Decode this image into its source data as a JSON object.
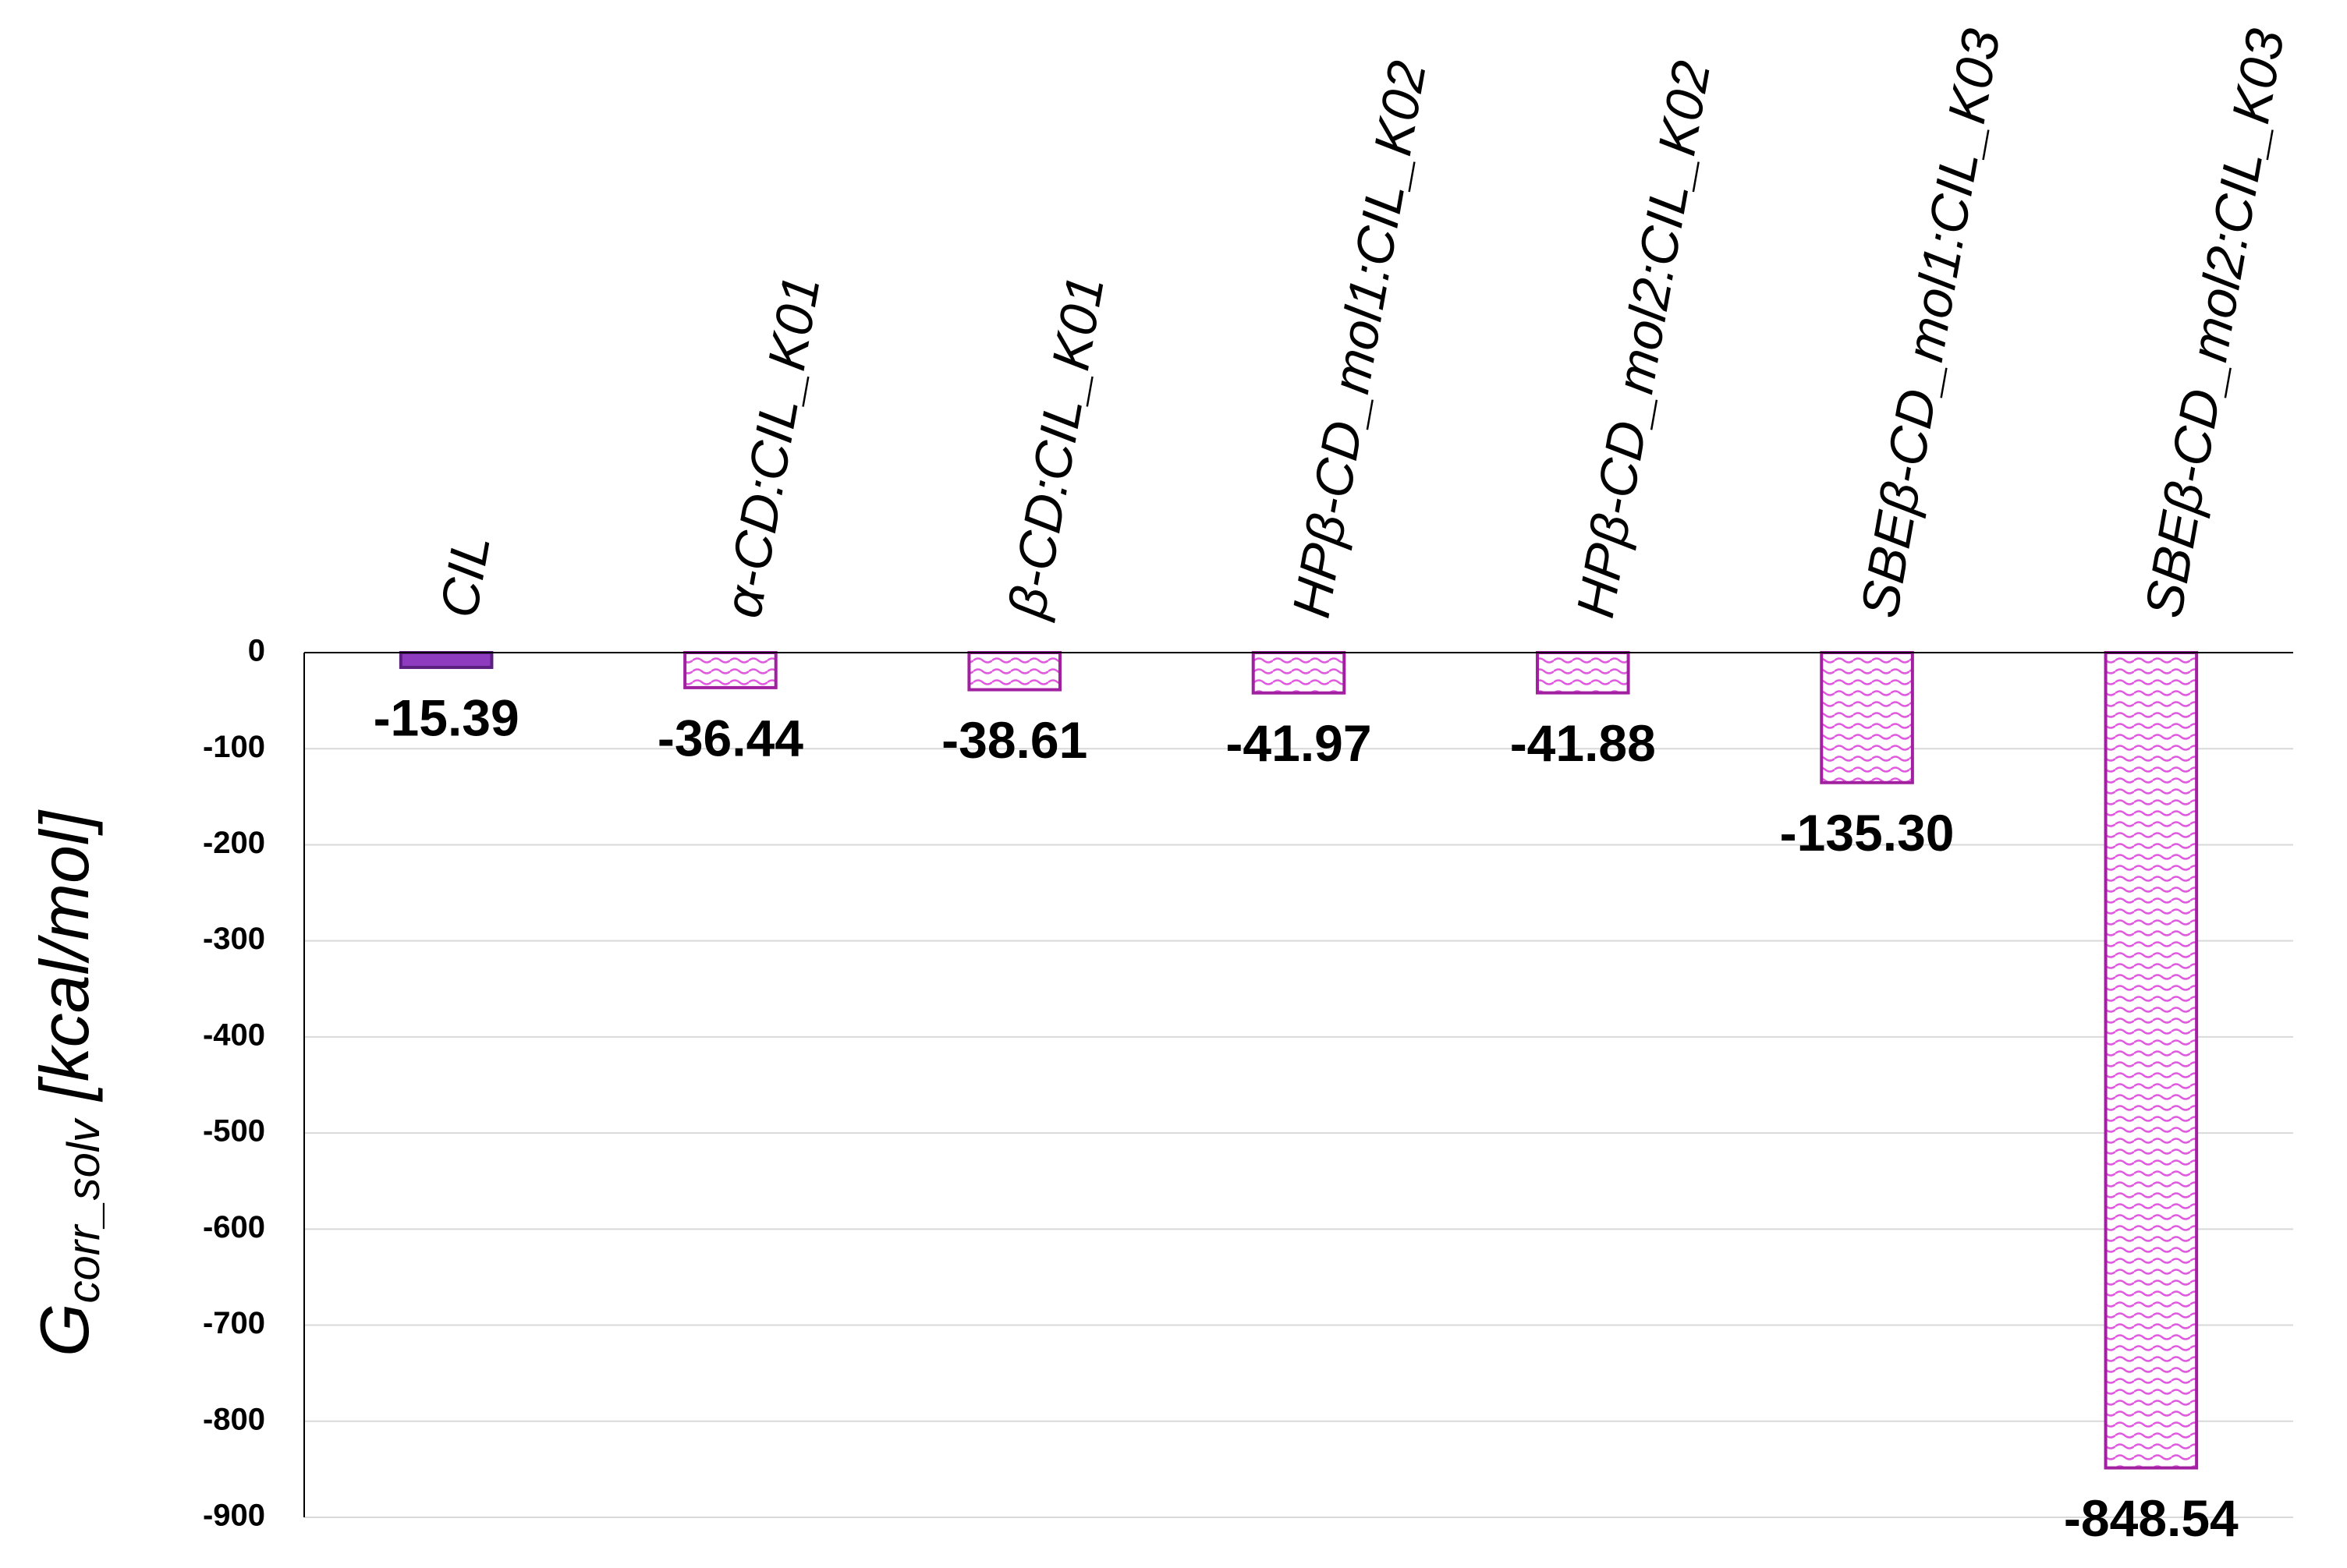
{
  "chart_data": {
    "type": "bar",
    "ylabel": [
      "G",
      "corr_solv",
      " [kcal/mol]"
    ],
    "categories": [
      "CIL",
      "α-CD:CIL_K01",
      "β-CD:CIL_K01",
      "HPβ-CD_mol1:CIL_K02",
      "HPβ-CD_mol2:CIL_K02",
      "SBEβ-CD_mol1:CIL_K03",
      "SBEβ-CD_mol2:CIL_K03"
    ],
    "values": [
      -15.39,
      -36.44,
      -38.61,
      -41.97,
      -41.88,
      -135.3,
      -848.54
    ],
    "value_labels": [
      "-15.39",
      "-36.44",
      "-38.61",
      "-41.97",
      "-41.88",
      "-135.30",
      "-848.54"
    ],
    "colors": [
      "#8e3bbf",
      "#d63cd6",
      "#d63cd6",
      "#d63cd6",
      "#d63cd6",
      "#d63cd6",
      "#d63cd6"
    ],
    "fill_styles": [
      "solid",
      "wave",
      "wave",
      "wave",
      "wave",
      "wave",
      "wave"
    ],
    "ylim": [
      -900,
      0
    ],
    "yticks": [
      0,
      -100,
      -200,
      -300,
      -400,
      -500,
      -600,
      -700,
      -800,
      -900
    ],
    "grid": true
  }
}
